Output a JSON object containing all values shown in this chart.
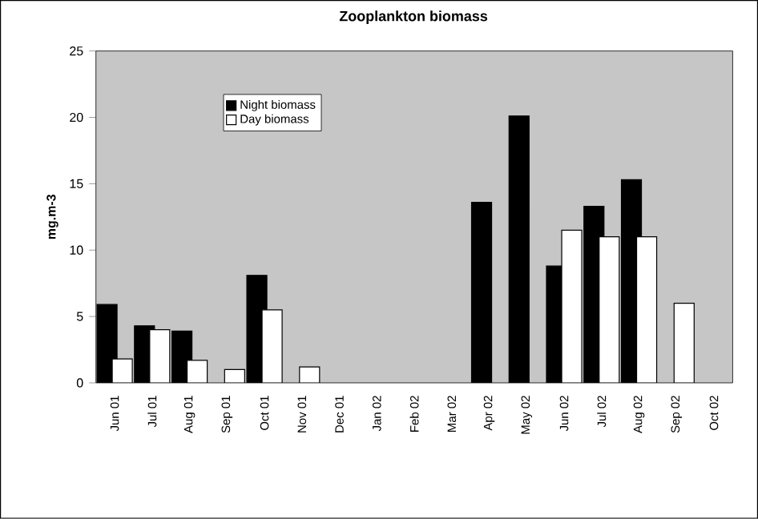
{
  "chart_data": {
    "type": "bar",
    "title": "Zooplankton biomass",
    "ylabel": "mg.m-3",
    "categories": [
      "Jun 01",
      "Jul 01",
      "Aug 01",
      "Sep 01",
      "Oct 01",
      "Nov 01",
      "Dec 01",
      "Jan 02",
      "Feb 02",
      "Mar 02",
      "Apr 02",
      "May 02",
      "Jun 02",
      "Jul 02",
      "Aug 02",
      "Sep 02",
      "Oct 02"
    ],
    "series": [
      {
        "name": "Night biomass",
        "color": "#000000",
        "values": [
          5.9,
          4.3,
          3.9,
          null,
          8.1,
          null,
          null,
          null,
          null,
          null,
          13.6,
          20.1,
          8.8,
          13.3,
          15.3,
          null,
          null
        ]
      },
      {
        "name": "Day biomass",
        "color": "#ffffff",
        "values": [
          1.8,
          4.0,
          1.7,
          1.0,
          5.5,
          1.2,
          null,
          null,
          null,
          null,
          null,
          null,
          11.5,
          11.0,
          11.0,
          6.0,
          null
        ]
      }
    ],
    "ylim": [
      0,
      25
    ],
    "yticks": [
      0,
      5,
      10,
      15,
      20,
      25
    ],
    "legend": "top left",
    "grid": false
  }
}
